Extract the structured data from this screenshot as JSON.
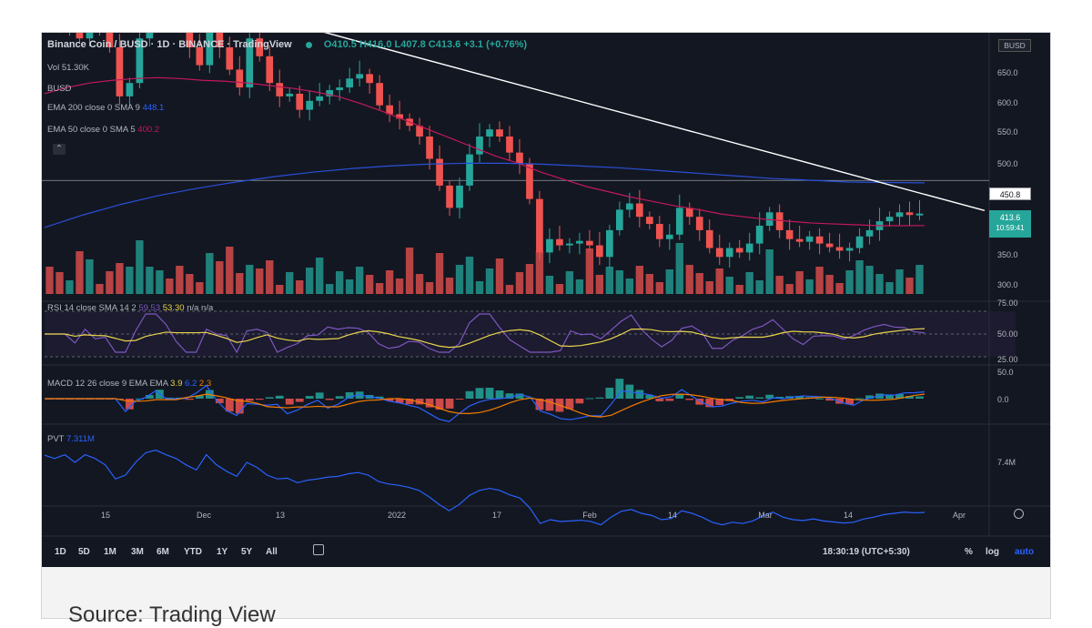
{
  "header": {
    "title": "Binance Coin / BUSD · 1D · BINANCE · TradingView",
    "ohlc": "O410.5 H416.0 L407.8 C413.6 +3.1 (+0.76%)"
  },
  "indicators": {
    "vol": "Vol  51.30K",
    "vol2": "BUSD",
    "ema200": "EMA 200 close 0 SMA 9",
    "ema200_val": "448.1",
    "ema50": "EMA 50 close 0 SMA 5",
    "ema50_val": "400.2",
    "rsi": "RSI 14 close SMA 14 2",
    "rsi_v1": "59.53",
    "rsi_v2": "53.30",
    "rsi_v3": "n/a n/a",
    "macd": "MACD 12 26 close 9 EMA EMA",
    "macd_v1": "3.9",
    "macd_v2": "6.2",
    "macd_v3": "2.3",
    "pvt": "PVT",
    "pvt_val": "7.311M"
  },
  "price_tags": {
    "currency": "BUSD",
    "level": "450.8",
    "price": "413.6",
    "countdown": "10:59:41"
  },
  "axes": {
    "price_ticks": [
      "650.0",
      "600.0",
      "550.0",
      "500.0",
      "350.0",
      "300.0"
    ],
    "rsi_ticks": [
      "75.00",
      "50.00",
      "25.00"
    ],
    "macd_ticks": [
      "50.0",
      "0.0"
    ],
    "pvt_ticks": [
      "7.4M"
    ],
    "time_ticks": [
      "15",
      "Dec",
      "13",
      "2022",
      "17",
      "Feb",
      "14",
      "Mar",
      "14",
      "Apr"
    ]
  },
  "toolbar": {
    "ranges": [
      "1D",
      "5D",
      "1M",
      "3M",
      "6M",
      "YTD",
      "1Y",
      "5Y",
      "All"
    ],
    "clock": "18:30:19 (UTC+5:30)",
    "percent": "%",
    "log": "log",
    "auto": "auto"
  },
  "caption": "Source: Trading View",
  "colors": {
    "bg": "#131722",
    "up": "#26a69a",
    "down": "#ef5350",
    "ema200": "#2a4fd6",
    "ema50": "#c2185b",
    "rsi": "#7e57c2",
    "rsi_ma": "#e8d44d",
    "pvt": "#2962ff",
    "trendline": "#ffffff"
  },
  "chart_data": {
    "type": "line",
    "closes": [
      638,
      625,
      640,
      610,
      640,
      625,
      600,
      545,
      560,
      610,
      648,
      658,
      640,
      625,
      600,
      580,
      640,
      600,
      575,
      555,
      610,
      590,
      560,
      545,
      548,
      530,
      540,
      545,
      552,
      555,
      565,
      570,
      560,
      535,
      525,
      520,
      512,
      500,
      475,
      445,
      420,
      445,
      480,
      500,
      508,
      500,
      482,
      470,
      430,
      370,
      385,
      378,
      380,
      383,
      378,
      365,
      395,
      418,
      425,
      410,
      402,
      385,
      390,
      420,
      410,
      395,
      375,
      365,
      375,
      370,
      380,
      400,
      415,
      395,
      385,
      382,
      388,
      380,
      376,
      372,
      375,
      388,
      395,
      405,
      410,
      415,
      412,
      413.6
    ],
    "ema50": [
      548,
      555,
      560,
      563,
      565,
      566,
      565,
      563,
      562,
      560,
      557,
      554,
      550,
      545,
      537,
      528,
      518,
      508,
      498,
      488,
      478,
      470,
      460,
      452,
      444,
      438,
      432,
      427,
      422,
      418,
      413,
      410,
      407,
      405,
      403,
      402,
      401,
      400,
      400,
      400.2
    ],
    "ema200": [
      398,
      412,
      424,
      434,
      442,
      449,
      455,
      460,
      464,
      467,
      469,
      470,
      470,
      469,
      467,
      465,
      462,
      459,
      456,
      453,
      451,
      449,
      448.5,
      448.1
    ],
    "trendline": [
      [
        0,
        663
      ],
      [
        1,
        417
      ]
    ],
    "horizontal_level": 450.8,
    "rsi_range": [
      25,
      75
    ],
    "ylim": [
      300,
      680
    ]
  }
}
